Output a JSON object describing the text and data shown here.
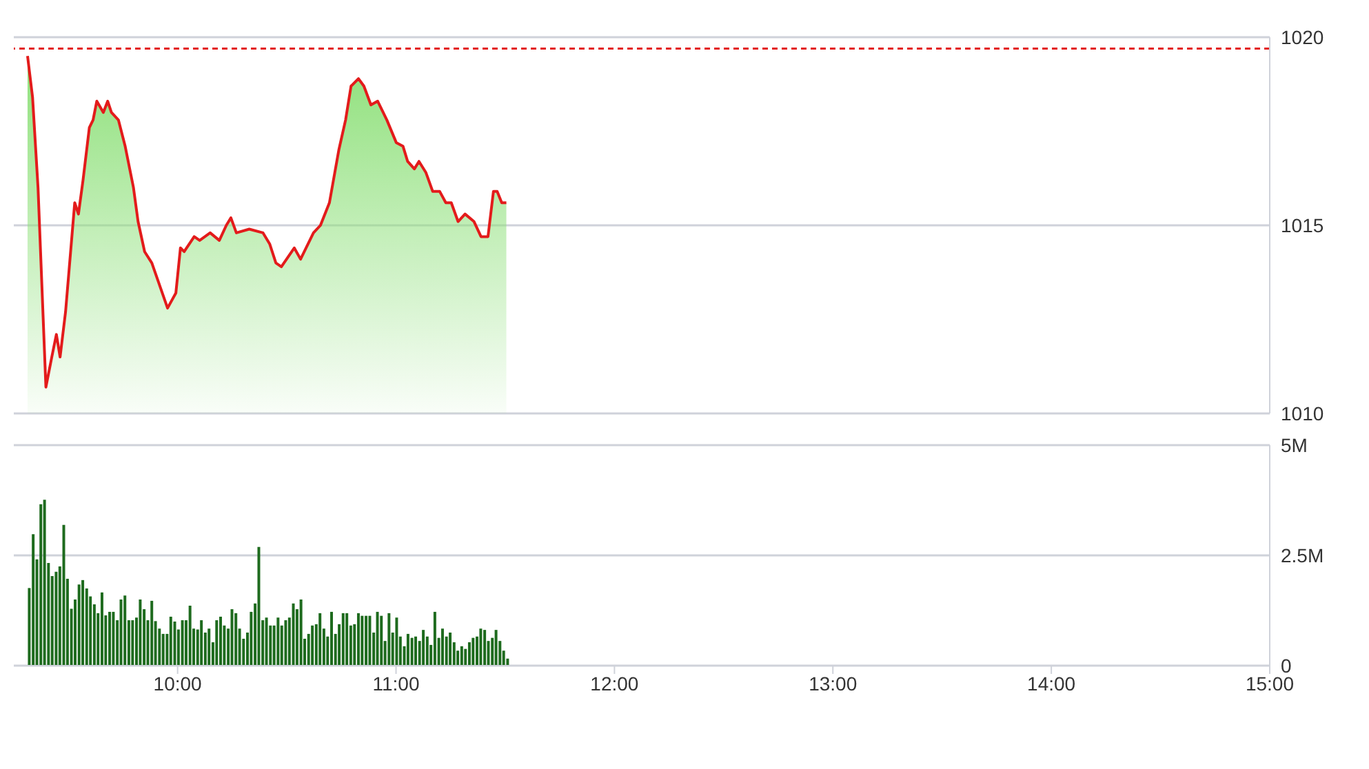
{
  "chart_data": [
    {
      "type": "area",
      "x": [
        9.313,
        9.336,
        9.361,
        9.397,
        9.424,
        9.445,
        9.462,
        9.487,
        9.529,
        9.546,
        9.567,
        9.596,
        9.613,
        9.63,
        9.66,
        9.68,
        9.697,
        9.729,
        9.76,
        9.798,
        9.819,
        9.849,
        9.882,
        9.918,
        9.954,
        9.992,
        10.013,
        10.03,
        10.076,
        10.101,
        10.149,
        10.191,
        10.223,
        10.244,
        10.269,
        10.328,
        10.391,
        10.422,
        10.45,
        10.475,
        10.534,
        10.563,
        10.622,
        10.654,
        10.695,
        10.738,
        10.769,
        10.794,
        10.828,
        10.853,
        10.885,
        10.916,
        10.958,
        11.001,
        11.032,
        11.053,
        11.084,
        11.105,
        11.137,
        11.168,
        11.2,
        11.228,
        11.253,
        11.284,
        11.316,
        11.357,
        11.389,
        11.421,
        11.446,
        11.463,
        11.484,
        11.505
      ],
      "series": [
        {
          "color": "#e31b1b",
          "values": [
            1019.5,
            1018.4,
            1016.0,
            1010.7,
            1011.5,
            1012.1,
            1011.5,
            1012.7,
            1015.6,
            1015.3,
            1016.2,
            1017.6,
            1017.8,
            1018.3,
            1018.0,
            1018.3,
            1018.0,
            1017.8,
            1017.1,
            1016.0,
            1015.1,
            1014.3,
            1014.0,
            1013.4,
            1012.8,
            1013.2,
            1014.4,
            1014.3,
            1014.7,
            1014.6,
            1014.8,
            1014.6,
            1015.0,
            1015.2,
            1014.8,
            1014.9,
            1014.8,
            1014.5,
            1014.0,
            1013.9,
            1014.4,
            1014.1,
            1014.8,
            1015.0,
            1015.6,
            1017.0,
            1017.8,
            1018.7,
            1018.9,
            1018.7,
            1018.2,
            1018.3,
            1017.8,
            1017.2,
            1017.1,
            1016.7,
            1016.5,
            1016.7,
            1016.4,
            1015.9,
            1015.9,
            1015.6,
            1015.6,
            1015.1,
            1015.3,
            1015.1,
            1014.7,
            1014.7,
            1015.9,
            1015.9,
            1015.6,
            1015.6
          ]
        }
      ],
      "xlim": [
        9.25,
        15
      ],
      "ylim": [
        1010,
        1020
      ],
      "yticks": [
        1010,
        1015,
        1020
      ],
      "grid": "y",
      "tick_labels": "y",
      "ref_lines": [
        {
          "axis": "y",
          "value": 1019.7,
          "color": "#e31b1b",
          "line_style": "dashed"
        }
      ]
    },
    {
      "type": "bar",
      "x": [
        9.323,
        9.341,
        9.358,
        9.376,
        9.393,
        9.411,
        9.428,
        9.446,
        9.463,
        9.481,
        9.498,
        9.516,
        9.533,
        9.551,
        9.568,
        9.586,
        9.603,
        9.621,
        9.638,
        9.656,
        9.673,
        9.691,
        9.708,
        9.726,
        9.743,
        9.761,
        9.779,
        9.796,
        9.814,
        9.831,
        9.849,
        9.866,
        9.884,
        9.901,
        9.919,
        9.936,
        9.954,
        9.971,
        9.989,
        10.006,
        10.024,
        10.041,
        10.059,
        10.076,
        10.094,
        10.111,
        10.129,
        10.146,
        10.164,
        10.181,
        10.199,
        10.216,
        10.234,
        10.251,
        10.269,
        10.286,
        10.304,
        10.322,
        10.339,
        10.357,
        10.374,
        10.392,
        10.409,
        10.427,
        10.444,
        10.462,
        10.479,
        10.497,
        10.514,
        10.532,
        10.549,
        10.567,
        10.584,
        10.602,
        10.619,
        10.637,
        10.654,
        10.672,
        10.689,
        10.707,
        10.725,
        10.742,
        10.76,
        10.777,
        10.795,
        10.812,
        10.83,
        10.847,
        10.865,
        10.882,
        10.9,
        10.917,
        10.935,
        10.952,
        10.97,
        10.987,
        11.005,
        11.022,
        11.04,
        11.057,
        11.075,
        11.092,
        11.11,
        11.127,
        11.145,
        11.162,
        11.18,
        11.198,
        11.215,
        11.233,
        11.25,
        11.268,
        11.285,
        11.303,
        11.32,
        11.338,
        11.355,
        11.373,
        11.39,
        11.408,
        11.425,
        11.443,
        11.46,
        11.478,
        11.495,
        11.513
      ],
      "series": [
        {
          "color": "#1e6b1e",
          "values": [
            1.76,
            2.98,
            2.41,
            3.66,
            3.76,
            2.33,
            2.03,
            2.13,
            2.25,
            3.19,
            1.97,
            1.29,
            1.5,
            1.84,
            1.94,
            1.75,
            1.57,
            1.39,
            1.19,
            1.66,
            1.14,
            1.22,
            1.22,
            1.03,
            1.5,
            1.59,
            1.03,
            1.03,
            1.09,
            1.5,
            1.28,
            1.03,
            1.47,
            1.01,
            0.84,
            0.72,
            0.72,
            1.11,
            1.0,
            0.82,
            1.03,
            1.03,
            1.36,
            0.84,
            0.82,
            1.03,
            0.75,
            0.84,
            0.53,
            1.03,
            1.11,
            0.91,
            0.84,
            1.28,
            1.19,
            0.84,
            0.61,
            0.75,
            1.22,
            1.41,
            2.69,
            1.03,
            1.09,
            0.91,
            0.91,
            1.09,
            0.91,
            1.03,
            1.09,
            1.41,
            1.28,
            1.5,
            0.61,
            0.72,
            0.91,
            0.94,
            1.19,
            0.84,
            0.66,
            1.22,
            0.72,
            0.94,
            1.19,
            1.19,
            0.91,
            0.94,
            1.19,
            1.13,
            1.13,
            1.13,
            0.75,
            1.22,
            1.13,
            0.56,
            1.19,
            0.75,
            1.09,
            0.66,
            0.44,
            0.72,
            0.63,
            0.66,
            0.56,
            0.81,
            0.66,
            0.47,
            1.22,
            0.63,
            0.84,
            0.66,
            0.75,
            0.53,
            0.34,
            0.44,
            0.38,
            0.53,
            0.63,
            0.66,
            0.84,
            0.81,
            0.56,
            0.63,
            0.81,
            0.56,
            0.34,
            0.16
          ]
        }
      ],
      "xlim": [
        9.25,
        15
      ],
      "xticks": [
        {
          "value": 10,
          "label": "10:00"
        },
        {
          "value": 11,
          "label": "11:00"
        },
        {
          "value": 12,
          "label": "12:00"
        },
        {
          "value": 13,
          "label": "13:00"
        },
        {
          "value": 14,
          "label": "14:00"
        },
        {
          "value": 15,
          "label": "15:00"
        }
      ],
      "ylim": [
        0,
        5
      ],
      "yticks": [
        {
          "value": 0,
          "label": "0"
        },
        {
          "value": 2.5,
          "label": "2.5M"
        },
        {
          "value": 5,
          "label": "5M"
        }
      ],
      "grid": "y"
    }
  ]
}
